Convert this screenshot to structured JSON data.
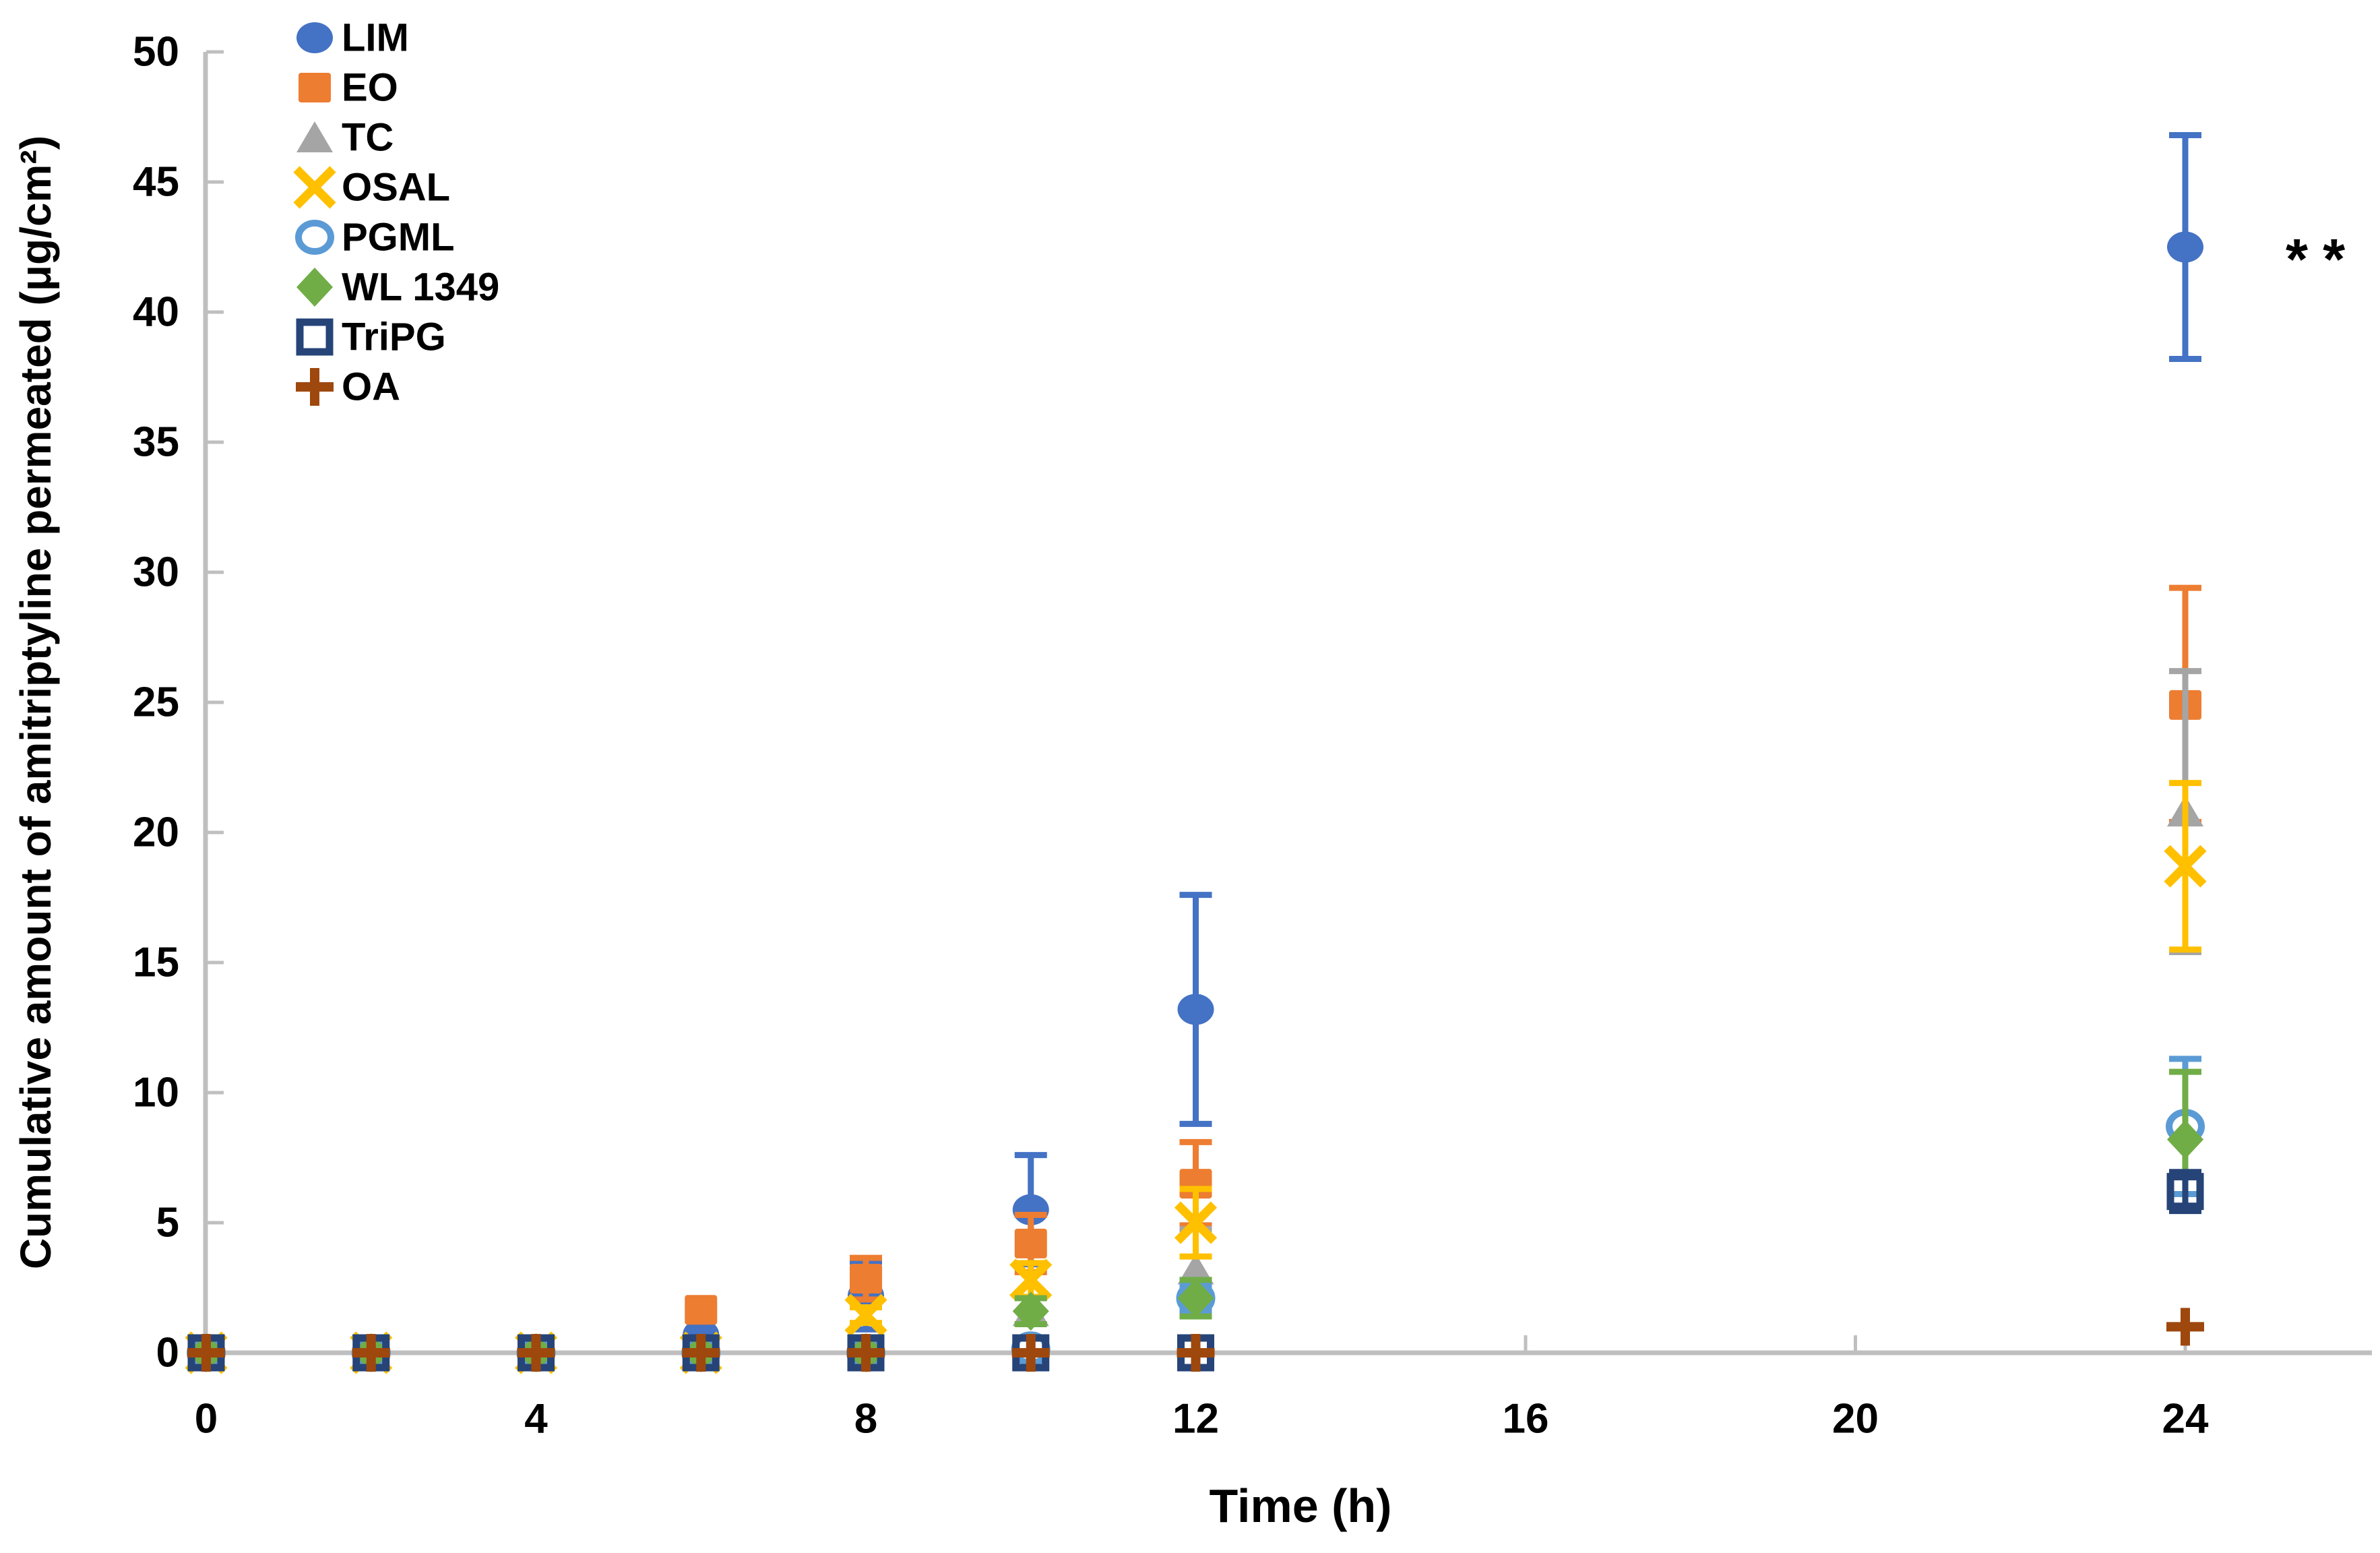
{
  "figure": {
    "background": "#ffffff",
    "text_color": "#000000",
    "axis_color": "#BFBFBF"
  },
  "chart_data": {
    "type": "scatter",
    "title": "",
    "xlabel": "Time (h)",
    "ylabel": "Cumulative amount of amitriptyline permeated (μg/cm²)",
    "x": [
      0,
      2,
      4,
      6,
      8,
      10,
      12,
      24
    ],
    "x_ticks": [
      0,
      4,
      8,
      12,
      16,
      20,
      24
    ],
    "y_ticks": [
      0,
      5,
      10,
      15,
      20,
      25,
      30,
      35,
      40,
      45,
      50
    ],
    "xlim": [
      0,
      26.3
    ],
    "ylim": [
      0,
      50
    ],
    "grid": false,
    "legend_position": "top-left-inside",
    "annotation": {
      "text": "**",
      "series": "LIM",
      "at_x": 24
    },
    "series": [
      {
        "name": "LIM",
        "marker": "circle-filled",
        "color": "#4472C4",
        "values": [
          0,
          0,
          0,
          0.7,
          2.2,
          5.5,
          13.2,
          42.5
        ],
        "errors": [
          0,
          0,
          0,
          0,
          1.3,
          2.1,
          4.4,
          4.3
        ]
      },
      {
        "name": "EO",
        "marker": "square-filled",
        "color": "#ED7D31",
        "values": [
          0,
          0,
          0,
          1.65,
          2.85,
          4.2,
          6.5,
          24.9
        ],
        "errors": [
          0,
          0,
          0,
          0,
          0.8,
          1.1,
          1.6,
          4.5
        ]
      },
      {
        "name": "TC",
        "marker": "triangle-filled",
        "color": "#A5A5A5",
        "values": [
          0,
          0,
          0,
          0,
          0,
          1.6,
          3.2,
          20.8
        ],
        "errors": [
          0,
          0,
          0,
          0,
          0,
          0,
          1.55,
          5.4
        ]
      },
      {
        "name": "OSAL",
        "marker": "x",
        "color": "#FFC000",
        "values": [
          0,
          0,
          0,
          0,
          1.45,
          2.8,
          5.0,
          18.7
        ],
        "errors": [
          0,
          0,
          0,
          0,
          0.3,
          0.65,
          1.3,
          3.2
        ]
      },
      {
        "name": "PGML",
        "marker": "circle-open",
        "color": "#5B9BD5",
        "values": [
          0,
          0,
          0,
          0,
          0,
          0.15,
          2.1,
          8.7
        ],
        "errors": [
          0,
          0,
          0,
          0,
          0,
          0,
          0.5,
          2.6
        ]
      },
      {
        "name": "WL 1349",
        "marker": "diamond-filled",
        "color": "#70AD47",
        "values": [
          0,
          0,
          0,
          0,
          0,
          1.6,
          2.1,
          8.2
        ],
        "errors": [
          0,
          0,
          0,
          0,
          0,
          0.5,
          0.7,
          2.6
        ]
      },
      {
        "name": "TriPG",
        "marker": "square-open",
        "color": "#264478",
        "values": [
          0,
          0,
          0,
          0,
          0,
          0,
          0,
          6.2
        ],
        "errors": [
          0,
          0,
          0,
          0,
          0,
          0,
          0,
          0.75
        ]
      },
      {
        "name": "OA",
        "marker": "plus",
        "color": "#9E480E",
        "values": [
          0,
          0,
          0,
          0,
          0,
          0,
          0,
          1.0
        ],
        "errors": [
          0,
          0,
          0,
          0,
          0,
          0,
          0,
          0
        ]
      }
    ]
  }
}
